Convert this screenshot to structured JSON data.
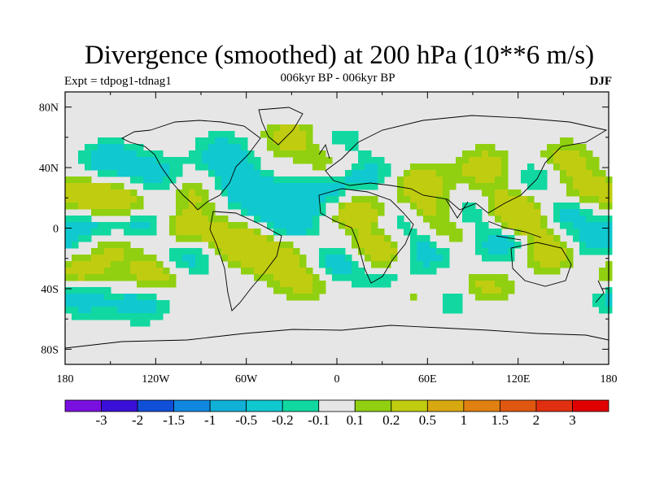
{
  "chart_data": {
    "type": "heatmap",
    "title": "Divergence (smoothed) at 200 hPa (10**6 m/s)",
    "subtitle_left": "Expt = tdpog1-tdnag1",
    "subtitle_center": "006kyr BP - 006kyr BP",
    "subtitle_right": "DJF",
    "x_ticks": [
      "180",
      "120W",
      "60W",
      "0",
      "60E",
      "120E",
      "180"
    ],
    "x_tick_values": [
      -180,
      -120,
      -60,
      0,
      60,
      120,
      180
    ],
    "y_ticks": [
      "80N",
      "40N",
      "0",
      "40S",
      "80S"
    ],
    "y_tick_values": [
      80,
      40,
      0,
      -40,
      -80
    ],
    "xlim": [
      -180,
      180
    ],
    "ylim": [
      -90,
      90
    ],
    "colorbar": {
      "levels": [
        "-3",
        "-2",
        "-1.5",
        "-1",
        "-0.5",
        "-0.2",
        "-0.1",
        "0.1",
        "0.2",
        "0.5",
        "1",
        "1.5",
        "2",
        "3"
      ],
      "colors": [
        "#7a10e0",
        "#3a10d8",
        "#1050d8",
        "#1088e0",
        "#10b0d8",
        "#10c8d0",
        "#10d8a0",
        "#e6e6e6",
        "#90d010",
        "#c0cc10",
        "#d8a810",
        "#e08010",
        "#e05810",
        "#e03010",
        "#e00000"
      ]
    },
    "blobs_note": "approximate smoothed divergence field (lon, lat, value)",
    "blobs": [
      [
        -160,
        20,
        0.35
      ],
      [
        -140,
        15,
        0.4
      ],
      [
        -170,
        -30,
        0.35
      ],
      [
        -120,
        -30,
        0.4
      ],
      [
        -150,
        -10,
        0.3
      ],
      [
        -100,
        0,
        0.35
      ],
      [
        -90,
        25,
        0.3
      ],
      [
        -65,
        -10,
        0.45
      ],
      [
        -40,
        -20,
        0.35
      ],
      [
        -20,
        -35,
        0.3
      ],
      [
        15,
        10,
        0.4
      ],
      [
        30,
        -15,
        0.45
      ],
      [
        55,
        30,
        0.3
      ],
      [
        60,
        10,
        0.35
      ],
      [
        75,
        -5,
        0.3
      ],
      [
        100,
        40,
        0.35
      ],
      [
        125,
        5,
        0.45
      ],
      [
        140,
        -15,
        0.4
      ],
      [
        165,
        25,
        0.3
      ],
      [
        150,
        45,
        0.3
      ],
      [
        95,
        -40,
        0.35
      ],
      [
        50,
        -40,
        0.3
      ],
      [
        110,
        15,
        0.35
      ],
      [
        -30,
        60,
        0.3
      ],
      [
        -5,
        45,
        0.3
      ],
      [
        -150,
        45,
        -0.35
      ],
      [
        -120,
        35,
        -0.3
      ],
      [
        -160,
        0,
        -0.35
      ],
      [
        -130,
        5,
        -0.4
      ],
      [
        -100,
        -20,
        -0.35
      ],
      [
        -50,
        20,
        -0.35
      ],
      [
        -70,
        30,
        -0.35
      ],
      [
        -30,
        5,
        -0.4
      ],
      [
        0,
        -25,
        -0.35
      ],
      [
        -10,
        25,
        -0.3
      ],
      [
        45,
        5,
        -0.35
      ],
      [
        40,
        -35,
        -0.3
      ],
      [
        60,
        -15,
        -0.4
      ],
      [
        90,
        10,
        -0.35
      ],
      [
        110,
        -10,
        -0.4
      ],
      [
        150,
        10,
        -0.35
      ],
      [
        170,
        -10,
        -0.3
      ],
      [
        130,
        35,
        -0.3
      ],
      [
        -170,
        -45,
        -0.35
      ],
      [
        -130,
        -50,
        -0.3
      ],
      [
        80,
        -45,
        -0.3
      ],
      [
        0,
        55,
        -0.25
      ],
      [
        -75,
        50,
        -0.3
      ],
      [
        20,
        35,
        -0.3
      ]
    ]
  }
}
